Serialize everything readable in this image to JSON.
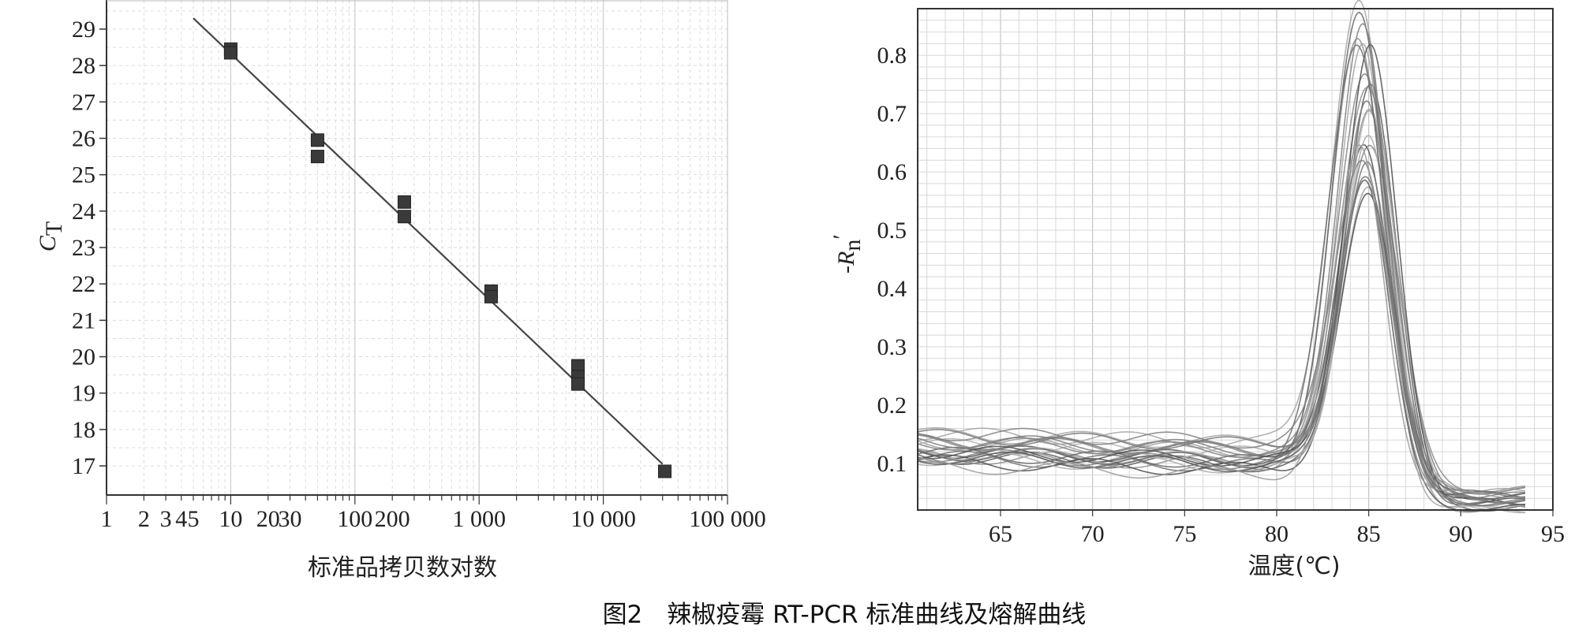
{
  "figure": {
    "caption": "图2　辣椒疫霉 RT-PCR 标准曲线及熔解曲线"
  },
  "chart_data": [
    {
      "type": "scatter",
      "x_scale": "log",
      "xlim": [
        1,
        100000
      ],
      "ylim": [
        16.2,
        29.8
      ],
      "x_tick_labels": [
        {
          "value": 1,
          "label": "1"
        },
        {
          "value": 2,
          "label": "2"
        },
        {
          "value": 3,
          "label": "3"
        },
        {
          "value": 4,
          "label": "4"
        },
        {
          "value": 5,
          "label": "5"
        },
        {
          "value": 10,
          "label": "10"
        },
        {
          "value": 20,
          "label": "20"
        },
        {
          "value": 30,
          "label": "30"
        },
        {
          "value": 100,
          "label": "100"
        },
        {
          "value": 200,
          "label": "200"
        },
        {
          "value": 1000,
          "label": "1 000"
        },
        {
          "value": 10000,
          "label": "10 000"
        },
        {
          "value": 100000,
          "label": "100 000"
        }
      ],
      "y_ticks": [
        17,
        18,
        19,
        20,
        21,
        22,
        23,
        24,
        25,
        26,
        27,
        28,
        29
      ],
      "xlabel": "标准品拷贝数对数",
      "ylabel_main": "C",
      "ylabel_sub": "T",
      "grid": true,
      "points": [
        {
          "x": 10,
          "y": 28.45
        },
        {
          "x": 10,
          "y": 28.35
        },
        {
          "x": 50,
          "y": 25.95
        },
        {
          "x": 50,
          "y": 25.5
        },
        {
          "x": 250,
          "y": 24.25
        },
        {
          "x": 250,
          "y": 23.85
        },
        {
          "x": 1250,
          "y": 21.8
        },
        {
          "x": 1250,
          "y": 21.65
        },
        {
          "x": 6250,
          "y": 19.75
        },
        {
          "x": 6250,
          "y": 19.45
        },
        {
          "x": 6250,
          "y": 19.25
        },
        {
          "x": 31250,
          "y": 16.85
        }
      ],
      "fit_line": {
        "x": [
          5,
          30000
        ],
        "y": [
          29.3,
          17.05
        ]
      }
    },
    {
      "type": "line",
      "xlim": [
        60.5,
        95
      ],
      "ylim": [
        0.02,
        0.88
      ],
      "x_ticks": [
        65,
        70,
        75,
        80,
        85,
        90,
        95
      ],
      "y_ticks": [
        0.1,
        0.2,
        0.3,
        0.4,
        0.5,
        0.6,
        0.7,
        0.8
      ],
      "xlabel": "温度(℃)",
      "ylabel_main": "-R",
      "ylabel_sub": "n",
      "ylabel_prime": "′",
      "grid": true,
      "series_count": 24,
      "curve_model": {
        "x_end": 93.5,
        "peak_range": [
          0.53,
          0.87
        ],
        "peak_temp_range": [
          84.4,
          85.3
        ],
        "baseline_range": [
          0.09,
          0.16
        ],
        "tail_range": [
          0.02,
          0.06
        ]
      }
    }
  ]
}
